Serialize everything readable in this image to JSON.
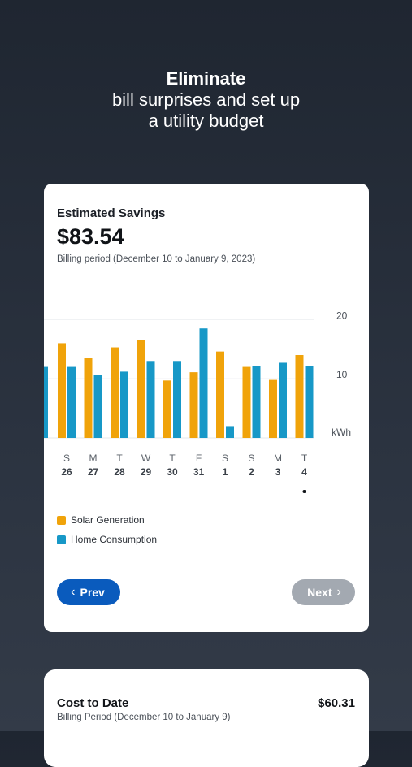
{
  "headline": {
    "line1": "Eliminate",
    "line2": "bill surprises and set up",
    "line3": "a utility budget"
  },
  "savings_card": {
    "title": "Estimated Savings",
    "amount": "$83.54",
    "period": "Billing period (December 10 to January 9, 2023)",
    "prev_label": "Prev",
    "next_label": "Next"
  },
  "chart_data": {
    "type": "bar",
    "y_unit": "kWh",
    "y_ticks": [
      10,
      20
    ],
    "ylim": [
      0,
      21
    ],
    "grid": true,
    "legend_position": "bottom-left",
    "categories": [
      {
        "day": "S",
        "date": "26"
      },
      {
        "day": "M",
        "date": "27"
      },
      {
        "day": "T",
        "date": "28"
      },
      {
        "day": "W",
        "date": "29"
      },
      {
        "day": "T",
        "date": "30"
      },
      {
        "day": "F",
        "date": "31"
      },
      {
        "day": "S",
        "date": "1"
      },
      {
        "day": "S",
        "date": "2"
      },
      {
        "day": "M",
        "date": "3"
      },
      {
        "day": "T",
        "date": "4"
      }
    ],
    "partial_home_consumption_before_first": 12,
    "series": [
      {
        "name": "Solar Generation",
        "color": "#f0a30a",
        "values": [
          16,
          13.5,
          15.3,
          16.5,
          9.7,
          11.1,
          14.6,
          12,
          9.8,
          14
        ]
      },
      {
        "name": "Home Consumption",
        "color": "#1798c7",
        "values": [
          12,
          10.6,
          11.2,
          13,
          13,
          18.5,
          2,
          12.2,
          12.7,
          12.2
        ]
      }
    ],
    "selected_index": 9
  },
  "cost_card": {
    "title": "Cost to Date",
    "value": "$60.31",
    "period": "Billing Period (December 10 to January 9)"
  }
}
